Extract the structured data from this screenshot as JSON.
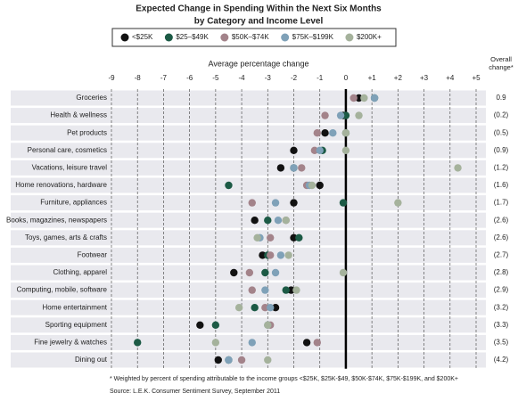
{
  "chart_data": {
    "type": "dot",
    "title": "Expected Change in Spending Within the Next Six Months",
    "subtitle": "by Category and Income Level",
    "x_label": "Average percentage change",
    "xlim": [
      -9,
      5
    ],
    "xticks": [
      -9,
      -8,
      -7,
      -6,
      -5,
      -4,
      -3,
      -2,
      -1,
      0,
      {
        "value": 1,
        "label": "+1"
      },
      {
        "value": 2,
        "label": "+2"
      },
      {
        "value": 3,
        "label": "+3"
      },
      {
        "value": 4,
        "label": "+4"
      },
      {
        "value": 5,
        "label": "+5"
      }
    ],
    "grid": true,
    "categories": [
      "Groceries",
      "Health & wellness",
      "Pet products",
      "Personal care, cosmetics",
      "Vacations, leisure travel",
      "Home renovations, hardware",
      "Furniture, appliances",
      "Books, magazines, newspapers",
      "Toys, games, arts & crafts",
      "Footwear",
      "Clothing, apparel",
      "Computing, mobile, software",
      "Home entertainment",
      "Sporting equipment",
      "Fine jewelry & watches",
      "Dining out"
    ],
    "series": [
      {
        "name": "<$25K",
        "color": "#111111",
        "values": [
          0.5,
          -0.1,
          -0.8,
          -2.0,
          -2.5,
          -1.0,
          -2.0,
          -3.5,
          -2.0,
          -3.2,
          -4.3,
          -2.1,
          -2.7,
          -5.6,
          -1.5,
          -4.9
        ]
      },
      {
        "name": "$25–$49K",
        "color": "#1c5a45",
        "values": [
          1.1,
          0.0,
          0.0,
          -0.9,
          -2.0,
          -4.5,
          -0.1,
          -3.0,
          -1.8,
          -3.0,
          -3.1,
          -2.3,
          -3.5,
          -5.0,
          -8.0,
          -4.5
        ]
      },
      {
        "name": "$50K–$74K",
        "color": "#a3838a",
        "values": [
          0.3,
          -0.8,
          -1.1,
          -1.2,
          -1.7,
          -1.5,
          -3.6,
          -2.3,
          -2.9,
          -2.9,
          -3.7,
          -3.6,
          -3.1,
          -2.9,
          -1.1,
          -4.0
        ]
      },
      {
        "name": "$75K–$199K",
        "color": "#7fa1b8",
        "values": [
          1.1,
          -0.2,
          -0.5,
          -1.0,
          -2.0,
          -1.4,
          -2.7,
          -2.6,
          -3.3,
          -2.5,
          -2.7,
          -3.1,
          -2.9,
          -3.0,
          -3.6,
          -4.5
        ]
      },
      {
        "name": "$200K+",
        "color": "#a5b29c",
        "values": [
          0.7,
          0.5,
          0.0,
          0.0,
          4.3,
          -1.3,
          2.0,
          -2.3,
          -3.4,
          -2.2,
          -0.1,
          -1.9,
          -4.1,
          -3.0,
          -5.0,
          -3.0
        ]
      }
    ],
    "overall": {
      "header": "Overall change*",
      "values": [
        0.9,
        -0.2,
        -0.5,
        -0.9,
        -1.2,
        -1.6,
        -1.7,
        -2.6,
        -2.6,
        -2.7,
        -2.8,
        -2.9,
        -3.2,
        -3.3,
        -3.5,
        -4.2
      ],
      "value_labels": [
        "0.9",
        "(0.2)",
        "(0.5)",
        "(0.9)",
        "(1.2)",
        "(1.6)",
        "(1.7)",
        "(2.6)",
        "(2.6)",
        "(2.7)",
        "(2.8)",
        "(2.9)",
        "(3.2)",
        "(3.3)",
        "(3.5)",
        "(4.2)"
      ]
    },
    "footnote": "* Weighted by percent of spending attributable to the income groups <$25K, $25K-$49, $50K-$74K, $75K-$199K, and $200K+",
    "source": "Source:  L.E.K. Consumer Sentiment Survey, September 2011"
  }
}
